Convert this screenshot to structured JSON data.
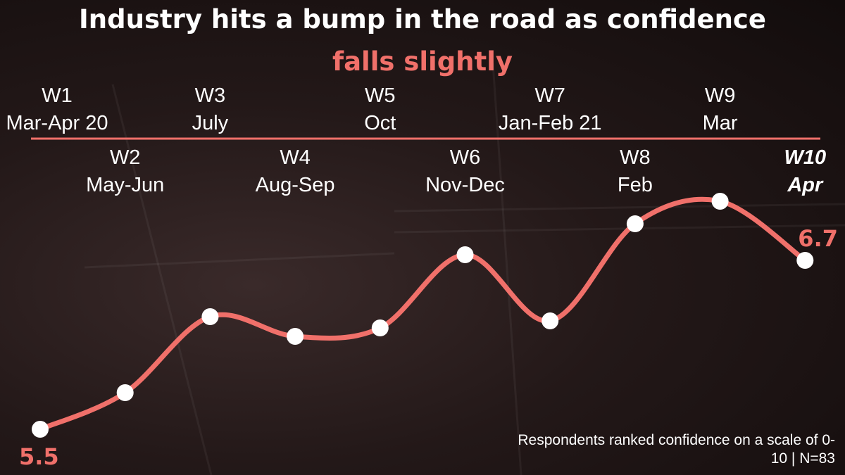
{
  "title": "Industry hits a bump in the road as confidence",
  "subtitle": "falls slightly",
  "colors": {
    "accent": "#f0706a",
    "point": "#ffffff",
    "text": "#ffffff"
  },
  "footnote": "Respondents ranked confidence on a scale of 0-10 | N=83",
  "chart_data": {
    "type": "line",
    "series": [
      {
        "categories": [
          "W1",
          "W2",
          "W3",
          "W4",
          "W5",
          "W6",
          "W7",
          "W8",
          "W9",
          "W10"
        ],
        "periods": [
          "Mar-Apr 20",
          "May-Jun",
          "July",
          "Aug-Sep",
          "Oct",
          "Nov-Dec",
          "Jan-Feb 21",
          "Feb",
          "Mar",
          "Apr"
        ],
        "values": [
          5.5,
          5.76,
          6.3,
          6.16,
          6.22,
          6.74,
          6.27,
          6.96,
          7.12,
          6.7
        ]
      }
    ],
    "data_labels": {
      "first": "5.5",
      "last": "6.7"
    },
    "highlighted": "W10",
    "ylim": [
      5.3,
      7.3
    ],
    "grid": false
  }
}
